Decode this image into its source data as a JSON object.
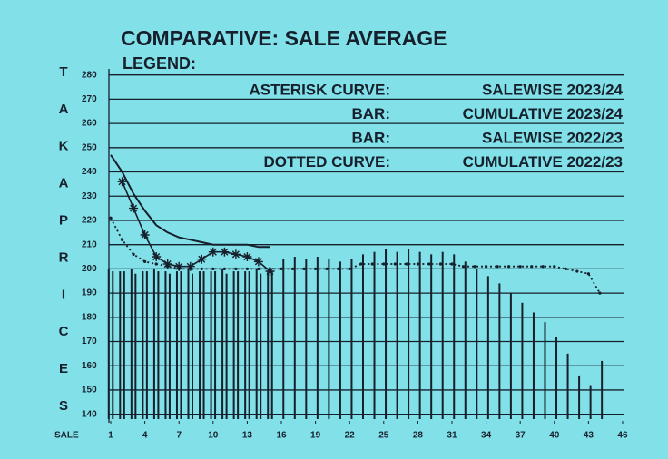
{
  "chart_data": {
    "type": "bar",
    "title": "COMPARATIVE: SALE AVERAGE",
    "legend_title": "LEGEND:",
    "y_label": [
      "T",
      "A",
      "K",
      "A",
      "P",
      "R",
      "I",
      "C",
      "E",
      "S"
    ],
    "x_label": "SALE",
    "x": [
      1,
      2,
      3,
      4,
      5,
      6,
      7,
      8,
      9,
      10,
      11,
      12,
      13,
      14,
      15,
      16,
      17,
      18,
      19,
      20,
      21,
      22,
      23,
      24,
      25,
      26,
      27,
      28,
      29,
      30,
      31,
      32,
      33,
      34,
      35,
      36,
      37,
      38,
      39,
      40,
      41,
      42,
      43,
      44
    ],
    "xlim": [
      0,
      47
    ],
    "xticks": [
      1,
      4,
      7,
      10,
      13,
      16,
      19,
      22,
      25,
      28,
      31,
      34,
      37,
      40,
      43,
      46
    ],
    "ylim": [
      138,
      281
    ],
    "yticks": [
      140,
      150,
      160,
      170,
      180,
      190,
      200,
      210,
      220,
      230,
      240,
      250,
      260,
      270,
      280
    ],
    "grid": true,
    "series": [
      {
        "key": "ASTERISK CURVE:",
        "name": "SALEWISE 2023/24",
        "type": "asterisk",
        "color": "#16202c",
        "values": [
          null,
          236,
          225,
          214,
          205,
          202,
          201,
          201,
          204,
          207,
          207,
          206,
          205,
          203,
          199,
          null,
          null,
          null,
          null,
          null,
          null,
          null,
          null,
          null,
          null,
          null,
          null,
          null,
          null,
          null,
          null,
          null,
          null,
          null,
          null,
          null,
          null,
          null,
          null,
          null,
          null,
          null,
          null,
          null
        ]
      },
      {
        "key": "BAR:",
        "name": "CUMULATIVE 2023/24",
        "type": "bar",
        "color": "#16202c",
        "values": [
          200,
          199,
          200,
          199,
          200,
          199,
          199,
          200,
          199,
          199,
          200,
          199,
          199,
          200,
          199,
          null,
          null,
          null,
          null,
          null,
          null,
          null,
          null,
          null,
          null,
          null,
          null,
          null,
          null,
          null,
          null,
          null,
          null,
          null,
          null,
          null,
          null,
          null,
          null,
          null,
          null,
          null,
          null,
          null
        ]
      },
      {
        "key": "BAR:",
        "name": "SALEWISE 2022/23",
        "type": "bar",
        "color": "#16202c",
        "values": [
          199,
          199,
          198,
          199,
          199,
          198,
          199,
          198,
          199,
          199,
          198,
          199,
          199,
          198,
          199,
          204,
          205,
          204,
          205,
          204,
          203,
          204,
          206,
          207,
          208,
          207,
          208,
          207,
          206,
          207,
          206,
          203,
          200,
          197,
          194,
          190,
          186,
          182,
          178,
          172,
          165,
          156,
          152,
          162
        ]
      },
      {
        "key": "DOTTED CURVE:",
        "name": "CUMULATIVE 2022/23",
        "type": "dotted",
        "color": "#16202c",
        "values": [
          221,
          212,
          206,
          203,
          202,
          201,
          200,
          200,
          200,
          200,
          200,
          200,
          200,
          200,
          200,
          200,
          200,
          200,
          200,
          200,
          200,
          200,
          202,
          202,
          202,
          202,
          202,
          202,
          202,
          202,
          202,
          201,
          201,
          201,
          201,
          201,
          201,
          201,
          201,
          201,
          200,
          199,
          198,
          190
        ]
      },
      {
        "type": "solid",
        "color": "#16202c",
        "values": [
          247,
          240,
          231,
          224,
          218,
          215,
          213,
          212,
          211,
          210,
          210,
          210,
          210,
          209,
          209,
          null,
          null,
          null,
          null,
          null,
          null,
          null,
          null,
          null,
          null,
          null,
          null,
          null,
          null,
          null,
          null,
          null,
          null,
          null,
          null,
          null,
          null,
          null,
          null,
          null,
          null,
          null,
          null,
          null
        ]
      }
    ]
  }
}
